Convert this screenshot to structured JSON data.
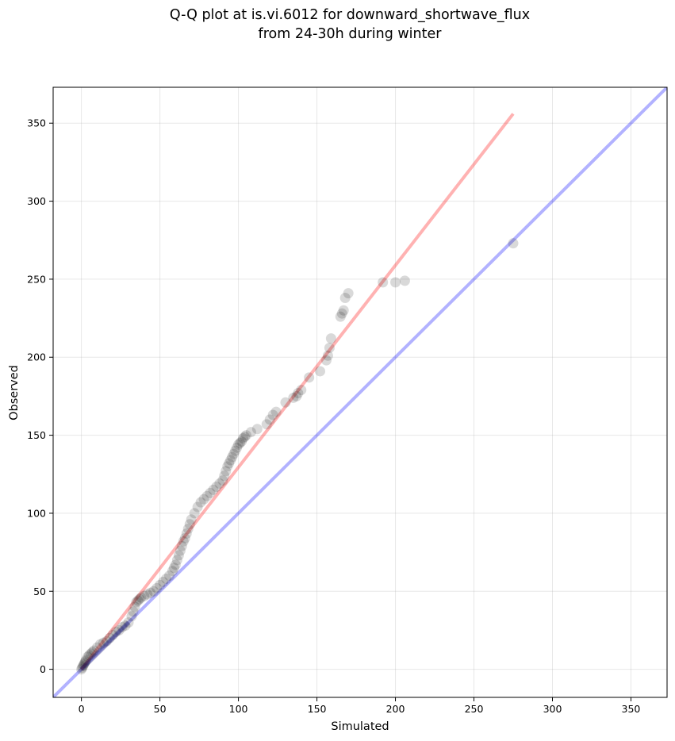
{
  "chart_data": {
    "type": "scatter",
    "title": "Q-Q plot at is.vi.6012 for downward_shortwave_flux\nfrom 24-30h during winter",
    "xlabel": "Simulated",
    "ylabel": "Observed",
    "xlim": [
      -18,
      373
    ],
    "ylim": [
      -18,
      373
    ],
    "xticks": [
      0,
      50,
      100,
      150,
      200,
      250,
      300,
      350
    ],
    "yticks": [
      0,
      50,
      100,
      150,
      200,
      250,
      300,
      350
    ],
    "grid": true,
    "series": [
      {
        "kind": "quantile-points",
        "color": "#000000",
        "alpha": 0.15,
        "x": [
          0,
          0.5,
          1,
          1.5,
          2,
          2.5,
          3,
          4,
          5,
          6,
          7,
          8,
          10,
          12,
          14,
          16,
          18,
          20,
          22,
          24,
          26,
          28,
          30,
          32,
          33,
          34,
          35,
          36,
          37,
          38,
          40,
          42,
          44,
          46,
          48,
          50,
          52,
          54,
          56,
          58,
          59,
          60,
          61,
          62,
          63,
          64,
          65,
          66,
          67,
          68,
          69,
          70,
          72,
          74,
          76,
          78,
          80,
          82,
          84,
          86,
          88,
          90,
          91,
          92,
          93,
          94,
          95,
          96,
          97,
          98,
          99,
          100,
          101,
          102,
          103,
          104,
          105,
          108,
          112,
          118,
          120,
          122,
          124,
          130,
          135,
          137,
          138,
          140,
          145,
          152,
          156,
          157,
          158,
          159,
          165,
          166,
          167,
          168,
          170,
          192,
          200,
          206,
          275
        ],
        "y": [
          0,
          1,
          2,
          3,
          4,
          5,
          6,
          8,
          9,
          10,
          11,
          12,
          14,
          16,
          17,
          18,
          20,
          22,
          24,
          25,
          27,
          28,
          30,
          34,
          37,
          40,
          43,
          44,
          45,
          46,
          47,
          48,
          49,
          50,
          52,
          54,
          56,
          58,
          60,
          63,
          65,
          67,
          70,
          73,
          76,
          79,
          82,
          84,
          87,
          90,
          93,
          96,
          100,
          104,
          107,
          109,
          111,
          113,
          115,
          117,
          119,
          121,
          124,
          127,
          130,
          132,
          134,
          136,
          138,
          140,
          142,
          144,
          145,
          146,
          148,
          149,
          150,
          152,
          154,
          157,
          160,
          163,
          165,
          171,
          174,
          175,
          177,
          179,
          187,
          191,
          198,
          201,
          206,
          212,
          226,
          228,
          230,
          238,
          241,
          248,
          248,
          249,
          273
        ]
      },
      {
        "kind": "line",
        "label": "1:1",
        "color": "#0000ff",
        "alpha": 0.3,
        "x": [
          -18,
          373
        ],
        "y": [
          -18,
          373
        ]
      },
      {
        "kind": "line",
        "label": "fit",
        "color": "#ff0000",
        "alpha": 0.3,
        "x": [
          0,
          275
        ],
        "y": [
          0,
          356
        ]
      }
    ]
  }
}
